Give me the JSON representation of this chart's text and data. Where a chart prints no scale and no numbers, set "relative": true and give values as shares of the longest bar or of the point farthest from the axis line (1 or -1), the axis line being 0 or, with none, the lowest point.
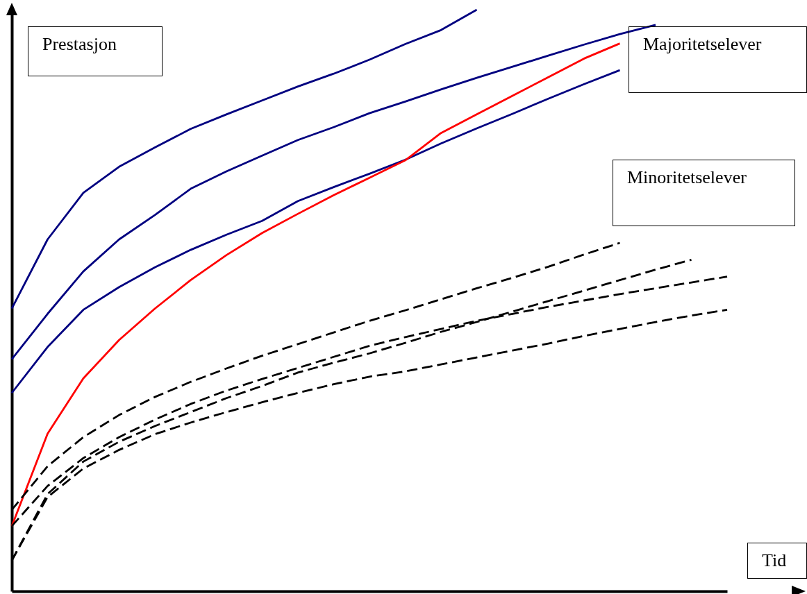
{
  "chart_data": {
    "type": "line",
    "relative": true,
    "ylabel": "Prestasjon",
    "xlabel": "Tid",
    "annotations": [
      "Majoritetselever",
      "Minoritetselever"
    ],
    "categories": [
      null,
      null,
      null,
      null,
      null,
      null,
      null,
      null,
      null,
      null,
      null,
      null,
      null,
      null,
      null,
      null,
      null,
      null,
      null,
      null,
      null
    ],
    "series": [
      {
        "color": "#000080",
        "line_style": "solid",
        "values": [
          0.486,
          0.605,
          0.685,
          0.73,
          0.763,
          0.795,
          0.82,
          0.844,
          0.868,
          0.89,
          0.914,
          0.941,
          0.965,
          1,
          null,
          null,
          null,
          null,
          null,
          null,
          null
        ]
      },
      {
        "color": "#000080",
        "line_style": "solid",
        "values": [
          0.399,
          0.477,
          0.55,
          0.605,
          0.647,
          0.692,
          0.722,
          0.749,
          0.776,
          0.798,
          0.822,
          0.842,
          0.863,
          0.883,
          0.902,
          0.921,
          0.94,
          0.958,
          0.974,
          null,
          null
        ]
      },
      {
        "color": "#000080",
        "line_style": "solid",
        "values": [
          0.341,
          0.42,
          0.484,
          0.523,
          0.557,
          0.587,
          0.613,
          0.637,
          0.671,
          0.695,
          0.718,
          0.742,
          0.77,
          0.796,
          0.821,
          0.847,
          0.872,
          0.896,
          null,
          null,
          null
        ]
      },
      {
        "color": "#ff0000",
        "line_style": "solid",
        "values": [
          0.112,
          0.271,
          0.366,
          0.432,
          0.486,
          0.535,
          0.578,
          0.616,
          0.649,
          0.681,
          0.711,
          0.741,
          0.788,
          0.82,
          0.852,
          0.884,
          0.916,
          0.942,
          null,
          null,
          null
        ]
      },
      {
        "color": "#000000",
        "line_style": "dashed",
        "values": [
          0.14,
          0.215,
          0.265,
          0.303,
          0.334,
          0.36,
          0.383,
          0.405,
          0.425,
          0.445,
          0.465,
          0.483,
          0.502,
          0.521,
          0.539,
          0.558,
          0.579,
          0.599,
          null,
          null,
          null
        ]
      },
      {
        "color": "#000000",
        "line_style": "dashed",
        "values": [
          0.112,
          0.181,
          0.229,
          0.265,
          0.295,
          0.322,
          0.345,
          0.365,
          0.384,
          0.403,
          0.422,
          0.437,
          0.451,
          0.465,
          0.477,
          0.489,
          0.5,
          0.511,
          0.521,
          0.531,
          0.541
        ]
      },
      {
        "color": "#000000",
        "line_style": "dashed",
        "values": [
          0.053,
          0.167,
          0.223,
          0.257,
          0.284,
          0.308,
          0.332,
          0.353,
          0.376,
          0.393,
          0.409,
          0.427,
          0.446,
          0.463,
          0.481,
          0.499,
          0.517,
          0.535,
          0.553,
          0.57,
          null
        ]
      },
      {
        "color": "#000000",
        "line_style": "dashed",
        "values": [
          0.053,
          0.162,
          0.211,
          0.243,
          0.27,
          0.29,
          0.308,
          0.325,
          0.341,
          0.356,
          0.369,
          0.378,
          0.39,
          0.402,
          0.414,
          0.426,
          0.439,
          0.451,
          0.463,
          0.474,
          0.484
        ]
      }
    ]
  }
}
